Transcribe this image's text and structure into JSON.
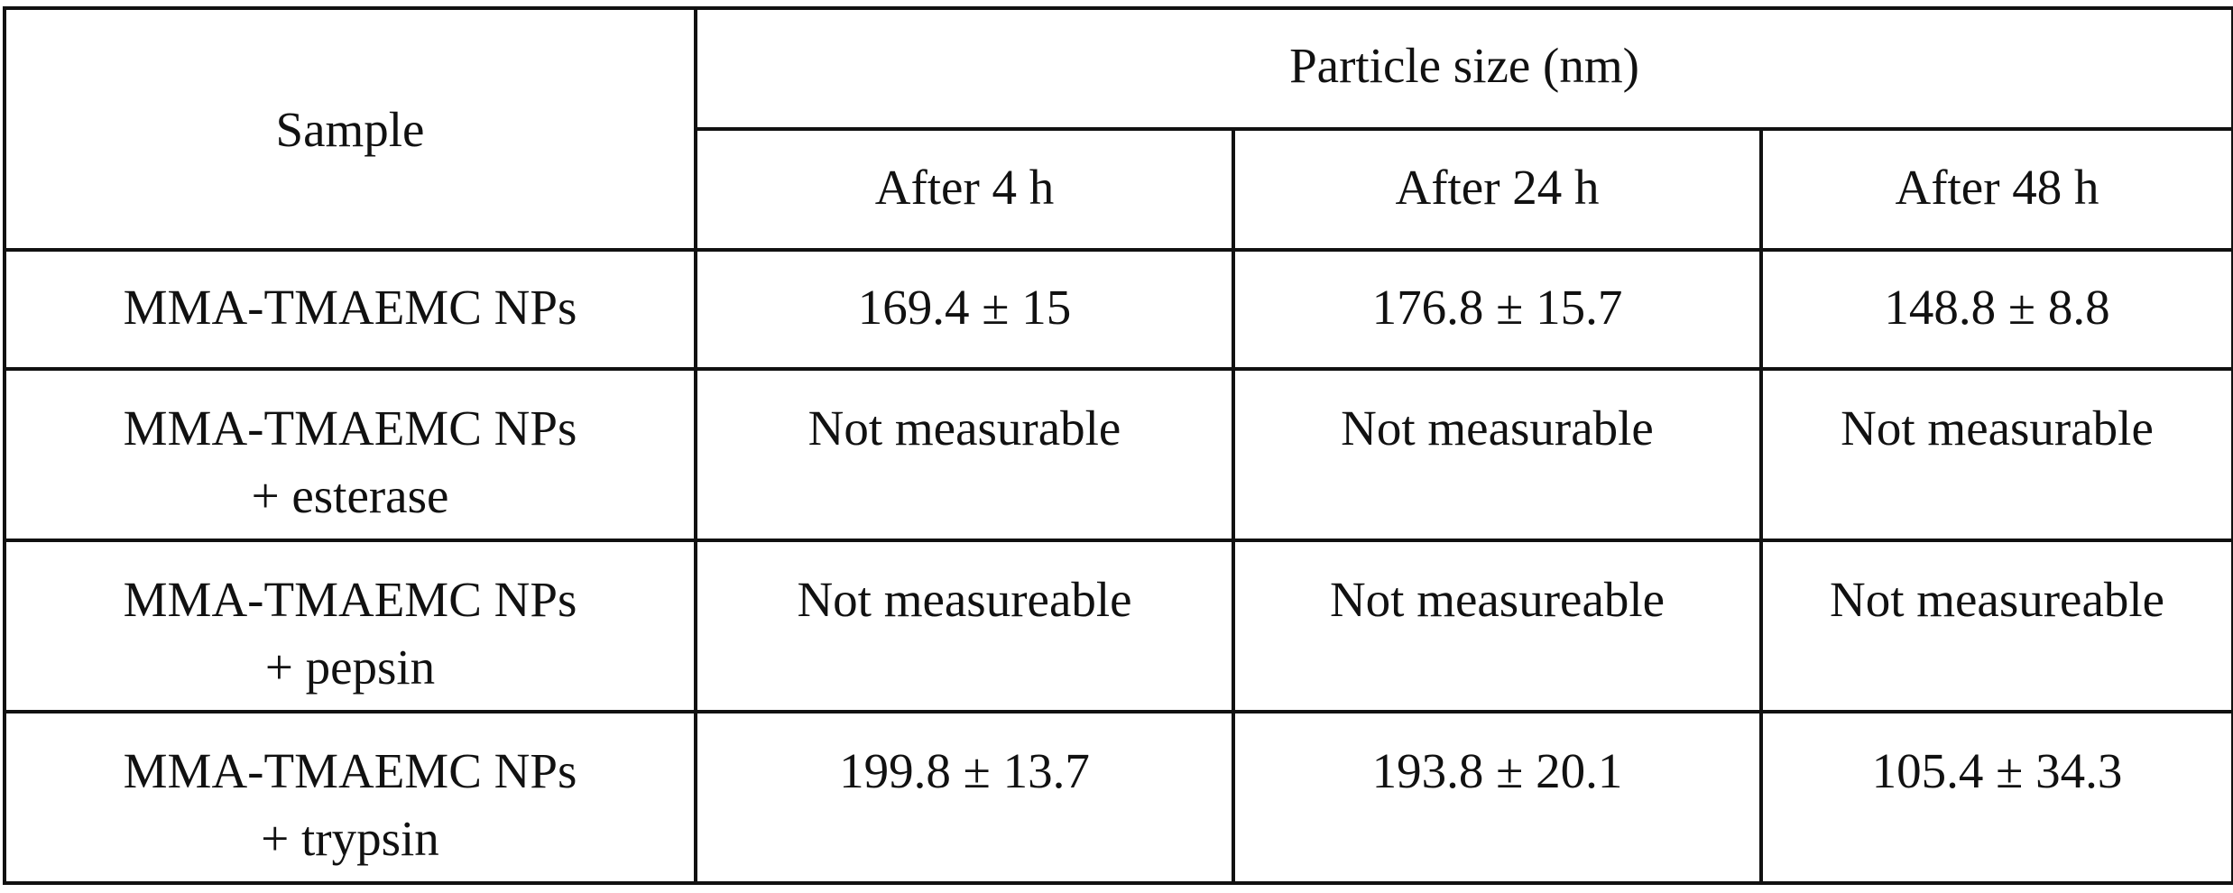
{
  "table": {
    "header": {
      "sample_label": "Sample",
      "group_label": "Particle size (nm)",
      "columns": [
        "After 4 h",
        "After 24 h",
        "After 48 h"
      ]
    },
    "rows": [
      {
        "sample": [
          "MMA-TMAEMC NPs"
        ],
        "values": [
          "169.4 ± 15",
          "176.8 ± 15.7",
          "148.8 ± 8.8"
        ]
      },
      {
        "sample": [
          "MMA-TMAEMC NPs",
          "+ esterase"
        ],
        "values": [
          "Not measurable",
          "Not measurable",
          "Not measurable"
        ]
      },
      {
        "sample": [
          "MMA-TMAEMC NPs",
          "+ pepsin"
        ],
        "values": [
          "Not measureable",
          "Not measureable",
          "Not measureable"
        ]
      },
      {
        "sample": [
          "MMA-TMAEMC NPs",
          "+ trypsin"
        ],
        "values": [
          "199.8 ± 13.7",
          "193.8 ± 20.1",
          "105.4 ± 34.3"
        ]
      }
    ]
  }
}
